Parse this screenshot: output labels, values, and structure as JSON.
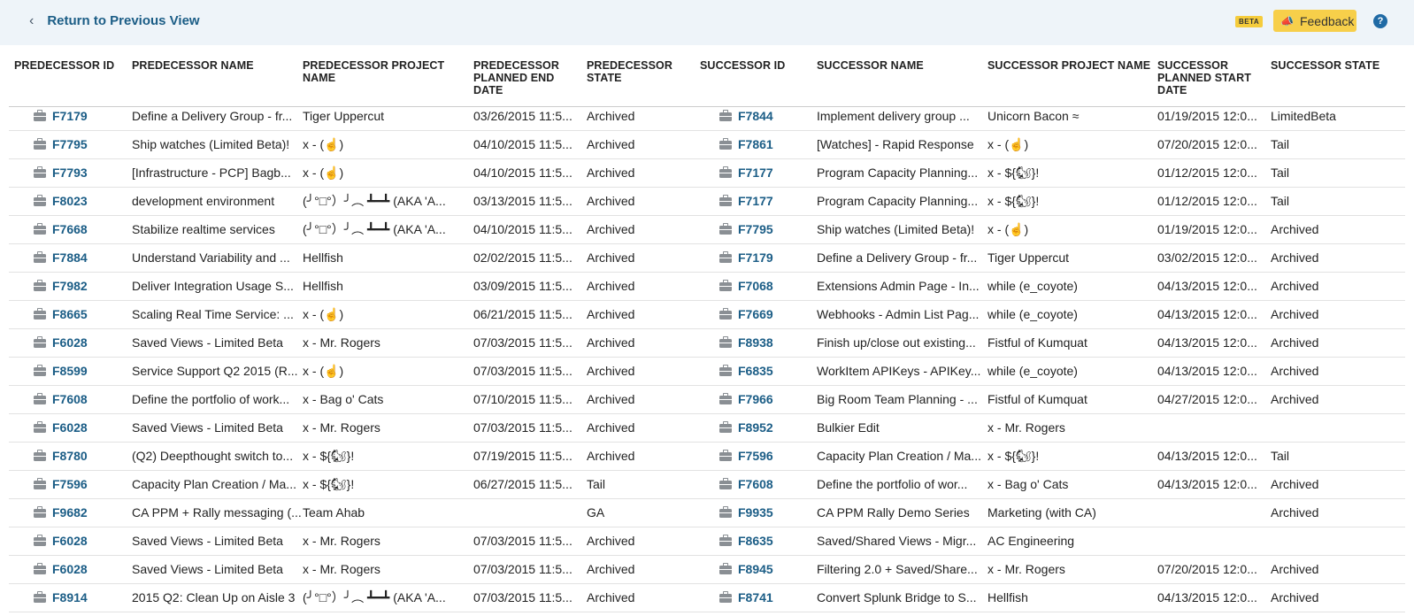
{
  "nav": {
    "back_label": "Return to Previous View",
    "beta_badge": "BETA",
    "feedback_label": "Feedback",
    "help_label": "?"
  },
  "columns": [
    "PREDECESSOR ID",
    "PREDECESSOR NAME",
    "PREDECESSOR PROJECT NAME",
    "PREDECESSOR PLANNED END DATE",
    "PREDECESSOR STATE",
    "SUCCESSOR ID",
    "SUCCESSOR NAME",
    "SUCCESSOR PROJECT NAME",
    "SUCCESSOR PLANNED START DATE",
    "SUCCESSOR STATE"
  ],
  "rows": [
    [
      "F7179",
      "Define a Delivery Group - fr...",
      "Tiger Uppercut",
      "03/26/2015 11:5...",
      "Archived",
      "F7844",
      "Implement delivery group ...",
      "Unicorn Bacon ≈",
      "01/19/2015 12:0...",
      "LimitedBeta"
    ],
    [
      "F7795",
      "Ship watches (Limited Beta)!",
      "x - (☝)",
      "04/10/2015 11:5...",
      "Archived",
      "F7861",
      "[Watches] - Rapid Response",
      "x - (☝)",
      "07/20/2015 12:0...",
      "Tail"
    ],
    [
      "F7793",
      "[Infrastructure - PCP] Bagb...",
      "x - (☝)",
      "04/10/2015 11:5...",
      "Archived",
      "F7177",
      "Program Capacity Planning...",
      "x - ${🐿}!",
      "01/12/2015 12:0...",
      "Tail"
    ],
    [
      "F8023",
      "development environment",
      "(╯°□°）╯︵ ┻━┻ (AKA 'A...",
      "03/13/2015 11:5...",
      "Archived",
      "F7177",
      "Program Capacity Planning...",
      "x - ${🐿}!",
      "01/12/2015 12:0...",
      "Tail"
    ],
    [
      "F7668",
      "Stabilize realtime services",
      "(╯°□°）╯︵ ┻━┻ (AKA 'A...",
      "04/10/2015 11:5...",
      "Archived",
      "F7795",
      "Ship watches (Limited Beta)!",
      "x - (☝)",
      "01/19/2015 12:0...",
      "Archived"
    ],
    [
      "F7884",
      "Understand Variability and ...",
      "Hellfish",
      "02/02/2015 11:5...",
      "Archived",
      "F7179",
      "Define a Delivery Group - fr...",
      "Tiger Uppercut",
      "03/02/2015 12:0...",
      "Archived"
    ],
    [
      "F7982",
      "Deliver Integration Usage S...",
      "Hellfish",
      "03/09/2015 11:5...",
      "Archived",
      "F7068",
      "Extensions Admin Page - In...",
      "while (e_coyote)",
      "04/13/2015 12:0...",
      "Archived"
    ],
    [
      "F8665",
      "Scaling Real Time Service: ...",
      "x - (☝)",
      "06/21/2015 11:5...",
      "Archived",
      "F7669",
      "Webhooks - Admin List Pag...",
      "while (e_coyote)",
      "04/13/2015 12:0...",
      "Archived"
    ],
    [
      "F6028",
      "Saved Views - Limited Beta",
      "x - Mr. Rogers",
      "07/03/2015 11:5...",
      "Archived",
      "F8938",
      "Finish up/close out existing...",
      "Fistful of Kumquat",
      "04/13/2015 12:0...",
      "Archived"
    ],
    [
      "F8599",
      "Service Support Q2 2015 (R...",
      "x - (☝)",
      "07/03/2015 11:5...",
      "Archived",
      "F6835",
      "WorkItem APIKeys - APIKey...",
      "while (e_coyote)",
      "04/13/2015 12:0...",
      "Archived"
    ],
    [
      "F7608",
      "Define the portfolio of work...",
      "x - Bag o' Cats",
      "07/10/2015 11:5...",
      "Archived",
      "F7966",
      "Big Room Team Planning - ...",
      "Fistful of Kumquat",
      "04/27/2015 12:0...",
      "Archived"
    ],
    [
      "F6028",
      "Saved Views - Limited Beta",
      "x - Mr. Rogers",
      "07/03/2015 11:5...",
      "Archived",
      "F8952",
      "Bulkier Edit",
      "x - Mr. Rogers",
      "",
      ""
    ],
    [
      "F8780",
      "(Q2) Deepthought switch to...",
      "x - ${🐿}!",
      "07/19/2015 11:5...",
      "Archived",
      "F7596",
      "Capacity Plan Creation / Ma...",
      "x - ${🐿}!",
      "04/13/2015 12:0...",
      "Tail"
    ],
    [
      "F7596",
      "Capacity Plan Creation / Ma...",
      "x - ${🐿}!",
      "06/27/2015 11:5...",
      "Tail",
      "F7608",
      "Define the portfolio of wor...",
      "x - Bag o' Cats",
      "04/13/2015 12:0...",
      "Archived"
    ],
    [
      "F9682",
      "CA PPM + Rally messaging (...",
      "Team Ahab",
      "",
      "GA",
      "F9935",
      "CA PPM Rally Demo Series",
      "Marketing (with CA)",
      "",
      "Archived"
    ],
    [
      "F6028",
      "Saved Views - Limited Beta",
      "x - Mr. Rogers",
      "07/03/2015 11:5...",
      "Archived",
      "F8635",
      "Saved/Shared Views - Migr...",
      "AC Engineering",
      "",
      ""
    ],
    [
      "F6028",
      "Saved Views - Limited Beta",
      "x - Mr. Rogers",
      "07/03/2015 11:5...",
      "Archived",
      "F8945",
      "Filtering 2.0 + Saved/Share...",
      "x - Mr. Rogers",
      "07/20/2015 12:0...",
      "Archived"
    ],
    [
      "F8914",
      "2015 Q2: Clean Up on Aisle 3",
      "(╯°□°）╯︵ ┻━┻ (AKA 'A...",
      "07/03/2015 11:5...",
      "Archived",
      "F8741",
      "Convert Splunk Bridge to S...",
      "Hellfish",
      "04/13/2015 12:0...",
      "Archived"
    ]
  ]
}
